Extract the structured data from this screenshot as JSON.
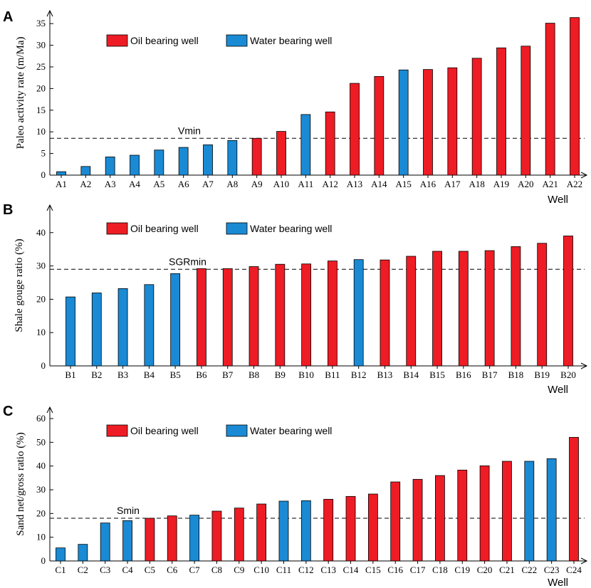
{
  "colors": {
    "oil": "#ee1c24",
    "water": "#1a8ad4"
  },
  "chart_data": [
    {
      "type": "bar",
      "panel": "A",
      "ylabel": "Paleo activity rate (m/Ma)",
      "xlabel": "Well",
      "ylim": [
        0,
        37
      ],
      "yticks": [
        0,
        5,
        10,
        15,
        20,
        25,
        30,
        35
      ],
      "legend": {
        "oil": "Oil bearing well",
        "water": "Water bearing well"
      },
      "threshold": {
        "label": "Vmin",
        "value": 8.5
      },
      "categories": [
        "A1",
        "A2",
        "A3",
        "A4",
        "A5",
        "A6",
        "A7",
        "A8",
        "A9",
        "A10",
        "A11",
        "A12",
        "A13",
        "A14",
        "A15",
        "A16",
        "A17",
        "A18",
        "A19",
        "A20",
        "A21",
        "A22"
      ],
      "values": [
        0.8,
        2.0,
        4.2,
        4.6,
        5.8,
        6.4,
        7.0,
        8.0,
        8.5,
        10.1,
        14.0,
        14.6,
        21.2,
        22.8,
        24.3,
        24.4,
        24.8,
        27.0,
        29.4,
        29.8,
        35.1,
        36.4
      ],
      "bearing": [
        "water",
        "water",
        "water",
        "water",
        "water",
        "water",
        "water",
        "water",
        "oil",
        "oil",
        "water",
        "oil",
        "oil",
        "oil",
        "water",
        "oil",
        "oil",
        "oil",
        "oil",
        "oil",
        "oil",
        "oil"
      ]
    },
    {
      "type": "bar",
      "panel": "B",
      "ylabel": "Shale gouge ratio (%)",
      "xlabel": "Well",
      "ylim": [
        0,
        47
      ],
      "yticks": [
        0,
        10,
        20,
        30,
        40
      ],
      "legend": {
        "oil": "Oil bearing well",
        "water": "Water bearing well"
      },
      "threshold": {
        "label": "SGRmin",
        "value": 29
      },
      "categories": [
        "B1",
        "B2",
        "B3",
        "B4",
        "B5",
        "B6",
        "B7",
        "B8",
        "B9",
        "B10",
        "B11",
        "B12",
        "B13",
        "B14",
        "B15",
        "B16",
        "B17",
        "B18",
        "B19",
        "B20"
      ],
      "values": [
        20.7,
        21.9,
        23.2,
        24.4,
        27.7,
        29.2,
        29.2,
        29.8,
        30.5,
        30.6,
        31.5,
        31.9,
        31.8,
        32.9,
        34.4,
        34.4,
        34.6,
        35.8,
        36.8,
        39.0
      ],
      "bearing": [
        "water",
        "water",
        "water",
        "water",
        "water",
        "oil",
        "oil",
        "oil",
        "oil",
        "oil",
        "oil",
        "water",
        "oil",
        "oil",
        "oil",
        "oil",
        "oil",
        "oil",
        "oil",
        "oil"
      ]
    },
    {
      "type": "bar",
      "panel": "C",
      "ylabel": "Sand net/gross ratio (%)",
      "xlabel": "Well",
      "ylim": [
        0,
        63
      ],
      "yticks": [
        0,
        10,
        20,
        30,
        40,
        50,
        60
      ],
      "legend": {
        "oil": "Oil bearing well",
        "water": "Water bearing well"
      },
      "threshold": {
        "label": "Smin",
        "value": 18
      },
      "categories": [
        "C1",
        "C2",
        "C3",
        "C4",
        "C5",
        "C6",
        "C7",
        "C8",
        "C9",
        "C10",
        "C11",
        "C12",
        "C13",
        "C14",
        "C15",
        "C16",
        "C17",
        "C18",
        "C19",
        "C20",
        "C21",
        "C22",
        "C23",
        "C24"
      ],
      "values": [
        5.5,
        7.0,
        16.0,
        17.0,
        18.0,
        19.0,
        19.3,
        21.0,
        22.3,
        24.0,
        25.2,
        25.4,
        26.0,
        27.2,
        28.2,
        33.3,
        34.4,
        36.0,
        38.3,
        40.1,
        42.0,
        42.0,
        43.1,
        52.1
      ],
      "bearing": [
        "water",
        "water",
        "water",
        "water",
        "oil",
        "oil",
        "water",
        "oil",
        "oil",
        "oil",
        "water",
        "water",
        "oil",
        "oil",
        "oil",
        "oil",
        "oil",
        "oil",
        "oil",
        "oil",
        "oil",
        "water",
        "water",
        "oil"
      ]
    }
  ]
}
